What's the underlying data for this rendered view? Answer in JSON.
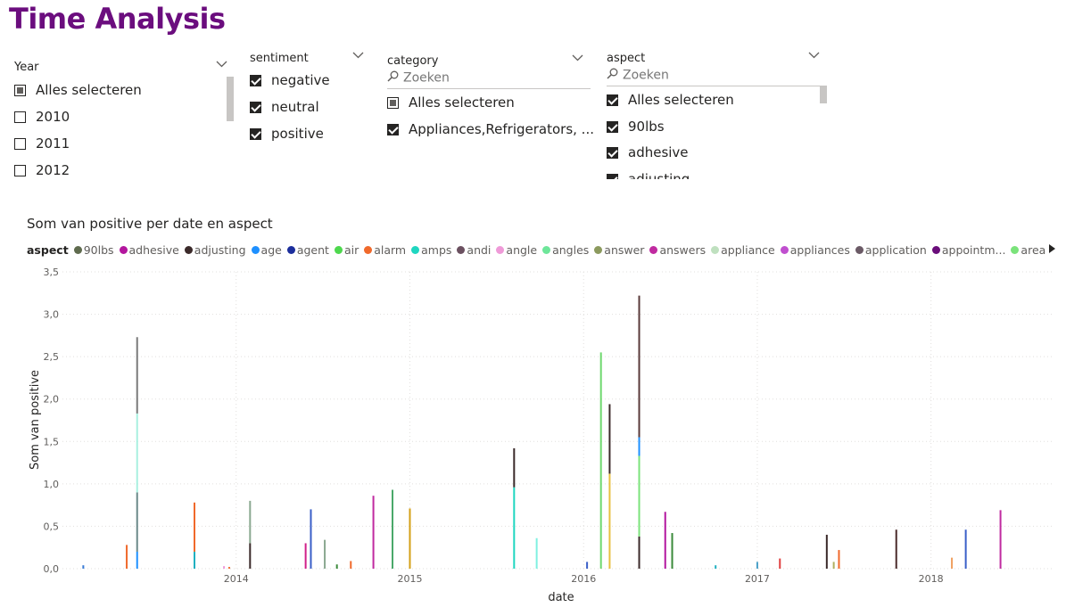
{
  "page": {
    "title": "Time Analysis"
  },
  "year_slicer": {
    "header": "Year",
    "options": [
      {
        "label": "Alles selecteren",
        "state": "partial"
      },
      {
        "label": "2010",
        "state": "unchecked"
      },
      {
        "label": "2011",
        "state": "unchecked"
      },
      {
        "label": "2012",
        "state": "unchecked"
      }
    ]
  },
  "sentiment_slicer": {
    "header": "sentiment",
    "options": [
      {
        "label": "negative",
        "state": "checked"
      },
      {
        "label": "neutral",
        "state": "checked"
      },
      {
        "label": "positive",
        "state": "checked"
      }
    ]
  },
  "category_slicer": {
    "header": "category",
    "search_placeholder": "Zoeken",
    "options": [
      {
        "label": "Alles selecteren",
        "state": "partial"
      },
      {
        "label": "Appliances,Refrigerators, ...",
        "state": "checked"
      }
    ]
  },
  "aspect_slicer": {
    "header": "aspect",
    "search_placeholder": "Zoeken",
    "options": [
      {
        "label": "Alles selecteren",
        "state": "checked"
      },
      {
        "label": "90lbs",
        "state": "checked"
      },
      {
        "label": "adhesive",
        "state": "checked"
      },
      {
        "label": "adjusting",
        "state": "checked"
      }
    ]
  },
  "chart_data": {
    "type": "bar",
    "title": "Som van positive per date en aspect",
    "xlabel": "date",
    "ylabel": "Som van positive",
    "ylim": [
      0,
      3.5
    ],
    "y_ticks": [
      "0,0",
      "0,5",
      "1,0",
      "1,5",
      "2,0",
      "2,5",
      "3,0",
      "3,5"
    ],
    "x_ticks": [
      "2014",
      "2015",
      "2016",
      "2017",
      "2018"
    ],
    "x_range": [
      2013.0,
      2018.7
    ],
    "grid": true,
    "legend_position": "top",
    "legend_title": "aspect",
    "legend": [
      {
        "name": "90lbs",
        "color": "#5f6b4e"
      },
      {
        "name": "adhesive",
        "color": "#b3169e"
      },
      {
        "name": "adjusting",
        "color": "#3b2a2a"
      },
      {
        "name": "age",
        "color": "#1e90ff"
      },
      {
        "name": "agent",
        "color": "#1c2e9c"
      },
      {
        "name": "air",
        "color": "#4ed84e"
      },
      {
        "name": "alarm",
        "color": "#f0692b"
      },
      {
        "name": "amps",
        "color": "#1fd6c0"
      },
      {
        "name": "andi",
        "color": "#6b5060"
      },
      {
        "name": "angle",
        "color": "#ef9ad8"
      },
      {
        "name": "angles",
        "color": "#6ee69a"
      },
      {
        "name": "answer",
        "color": "#8c9a5e"
      },
      {
        "name": "answers",
        "color": "#c02aa0"
      },
      {
        "name": "appliance",
        "color": "#bfe0bf"
      },
      {
        "name": "appliances",
        "color": "#c04fcf"
      },
      {
        "name": "application",
        "color": "#6b5a66"
      },
      {
        "name": "appointm...",
        "color": "#6a0d7a"
      },
      {
        "name": "area",
        "color": "#7be37b"
      }
    ],
    "bars": [
      {
        "date": 2013.12,
        "segments": [
          {
            "value": 0.04,
            "color": "#3a7bd5"
          }
        ]
      },
      {
        "date": 2013.37,
        "segments": [
          {
            "value": 0.28,
            "color": "#f0692b"
          }
        ]
      },
      {
        "date": 2013.43,
        "segments": [
          {
            "value": 0.2,
            "color": "#1e90ff"
          },
          {
            "value": 0.7,
            "color": "#6b8a8a"
          },
          {
            "value": 0.93,
            "color": "#a8f0e0"
          },
          {
            "value": 0.9,
            "color": "#7a7a7a"
          }
        ]
      },
      {
        "date": 2013.76,
        "segments": [
          {
            "value": 0.2,
            "color": "#1fb0c0"
          },
          {
            "value": 0.58,
            "color": "#f0692b"
          }
        ]
      },
      {
        "date": 2013.93,
        "segments": [
          {
            "value": 0.03,
            "color": "#ef9ad8"
          }
        ]
      },
      {
        "date": 2013.96,
        "segments": [
          {
            "value": 0.02,
            "color": "#f0692b"
          }
        ]
      },
      {
        "date": 2014.08,
        "segments": [
          {
            "value": 0.3,
            "color": "#3b2a2a"
          },
          {
            "value": 0.5,
            "color": "#8aa890"
          }
        ]
      },
      {
        "date": 2014.4,
        "segments": [
          {
            "value": 0.3,
            "color": "#d0208a"
          }
        ]
      },
      {
        "date": 2014.43,
        "segments": [
          {
            "value": 0.7,
            "color": "#3a5fc8"
          }
        ]
      },
      {
        "date": 2014.51,
        "segments": [
          {
            "value": 0.34,
            "color": "#8aa890"
          }
        ]
      },
      {
        "date": 2014.58,
        "segments": [
          {
            "value": 0.05,
            "color": "#3a8a3a"
          }
        ]
      },
      {
        "date": 2014.66,
        "segments": [
          {
            "value": 0.09,
            "color": "#f0692b"
          }
        ]
      },
      {
        "date": 2014.79,
        "segments": [
          {
            "value": 0.86,
            "color": "#c02aa0"
          }
        ]
      },
      {
        "date": 2014.9,
        "segments": [
          {
            "value": 0.93,
            "color": "#4aa86a"
          }
        ]
      },
      {
        "date": 2015.0,
        "segments": [
          {
            "value": 0.71,
            "color": "#d4a017"
          }
        ]
      },
      {
        "date": 2015.6,
        "segments": [
          {
            "value": 0.96,
            "color": "#1fd6c0"
          },
          {
            "value": 0.46,
            "color": "#3b2a2a"
          }
        ]
      },
      {
        "date": 2015.73,
        "segments": [
          {
            "value": 0.36,
            "color": "#7ff0e0"
          }
        ]
      },
      {
        "date": 2016.02,
        "segments": [
          {
            "value": 0.08,
            "color": "#3a5fc8"
          }
        ]
      },
      {
        "date": 2016.1,
        "segments": [
          {
            "value": 2.55,
            "color": "#6ed86e"
          }
        ]
      },
      {
        "date": 2016.15,
        "segments": [
          {
            "value": 1.12,
            "color": "#e8c040"
          },
          {
            "value": 0.82,
            "color": "#3b2a2a"
          }
        ]
      },
      {
        "date": 2016.32,
        "segments": [
          {
            "value": 0.38,
            "color": "#3b2a2a"
          },
          {
            "value": 0.95,
            "color": "#7be37b"
          },
          {
            "value": 0.22,
            "color": "#1e90ff"
          },
          {
            "value": 1.67,
            "color": "#5a3a3a"
          }
        ]
      },
      {
        "date": 2016.47,
        "segments": [
          {
            "value": 0.67,
            "color": "#b3169e"
          }
        ]
      },
      {
        "date": 2016.51,
        "segments": [
          {
            "value": 0.42,
            "color": "#3a8a3a"
          }
        ]
      },
      {
        "date": 2016.76,
        "segments": [
          {
            "value": 0.04,
            "color": "#1fb0c0"
          }
        ]
      },
      {
        "date": 2017.0,
        "segments": [
          {
            "value": 0.08,
            "color": "#4aa0c8"
          }
        ]
      },
      {
        "date": 2017.13,
        "segments": [
          {
            "value": 0.12,
            "color": "#e04040"
          }
        ]
      },
      {
        "date": 2017.4,
        "segments": [
          {
            "value": 0.4,
            "color": "#3b2a2a"
          }
        ]
      },
      {
        "date": 2017.44,
        "segments": [
          {
            "value": 0.08,
            "color": "#b0b060"
          }
        ]
      },
      {
        "date": 2017.47,
        "segments": [
          {
            "value": 0.22,
            "color": "#f0692b"
          }
        ]
      },
      {
        "date": 2017.8,
        "segments": [
          {
            "value": 0.46,
            "color": "#4a2a2a"
          }
        ]
      },
      {
        "date": 2018.12,
        "segments": [
          {
            "value": 0.13,
            "color": "#f0a060"
          }
        ]
      },
      {
        "date": 2018.2,
        "segments": [
          {
            "value": 0.46,
            "color": "#3a5fc8"
          }
        ]
      },
      {
        "date": 2018.4,
        "segments": [
          {
            "value": 0.69,
            "color": "#c02aa0"
          }
        ]
      }
    ]
  }
}
